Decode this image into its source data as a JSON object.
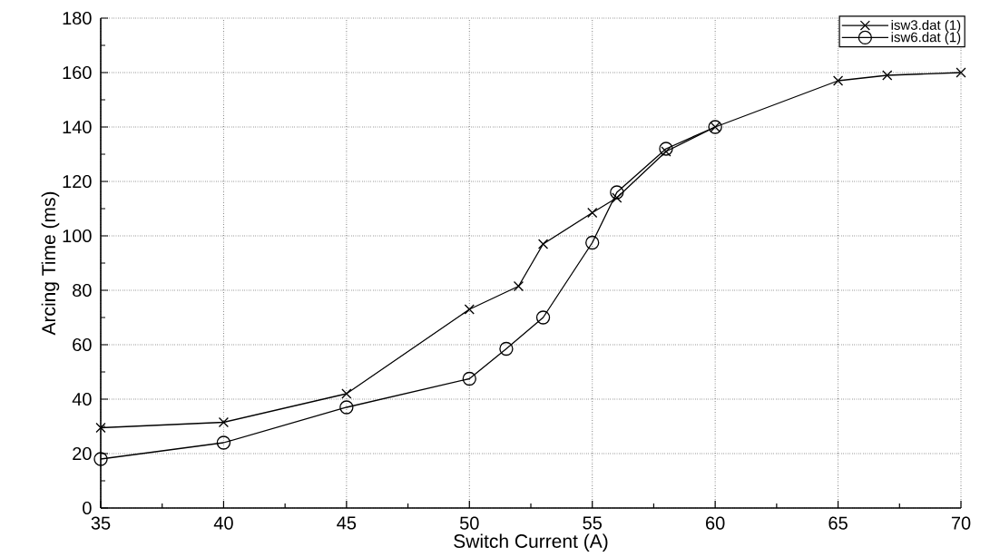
{
  "chart_data": {
    "type": "line",
    "xlabel": "Switch Current (A)",
    "ylabel": "Arcing Time (ms)",
    "xlim": [
      35,
      70
    ],
    "ylim": [
      0,
      180
    ],
    "xticks": [
      35,
      40,
      45,
      50,
      55,
      60,
      65,
      70
    ],
    "yticks": [
      0,
      20,
      40,
      60,
      80,
      100,
      120,
      140,
      160,
      180
    ],
    "grid": true,
    "legend": "top right",
    "line_style": "solid",
    "series": [
      {
        "name": "isw3.dat (1)",
        "color": "#000000",
        "marker": "cross",
        "x": [
          35,
          40,
          45,
          50,
          52,
          53,
          55,
          56,
          58,
          60,
          65,
          67,
          70
        ],
        "values": [
          29.5,
          31.5,
          42,
          73,
          81.5,
          97,
          108.5,
          114,
          131,
          140,
          157,
          159,
          160
        ]
      },
      {
        "name": "isw6.dat (1)",
        "color": "#000000",
        "marker": "circle",
        "x": [
          35,
          40,
          45,
          50,
          51.5,
          53,
          55,
          56,
          58,
          60
        ],
        "values": [
          18,
          24,
          37,
          47.5,
          58.5,
          70,
          97.5,
          116,
          132,
          140
        ]
      }
    ]
  }
}
